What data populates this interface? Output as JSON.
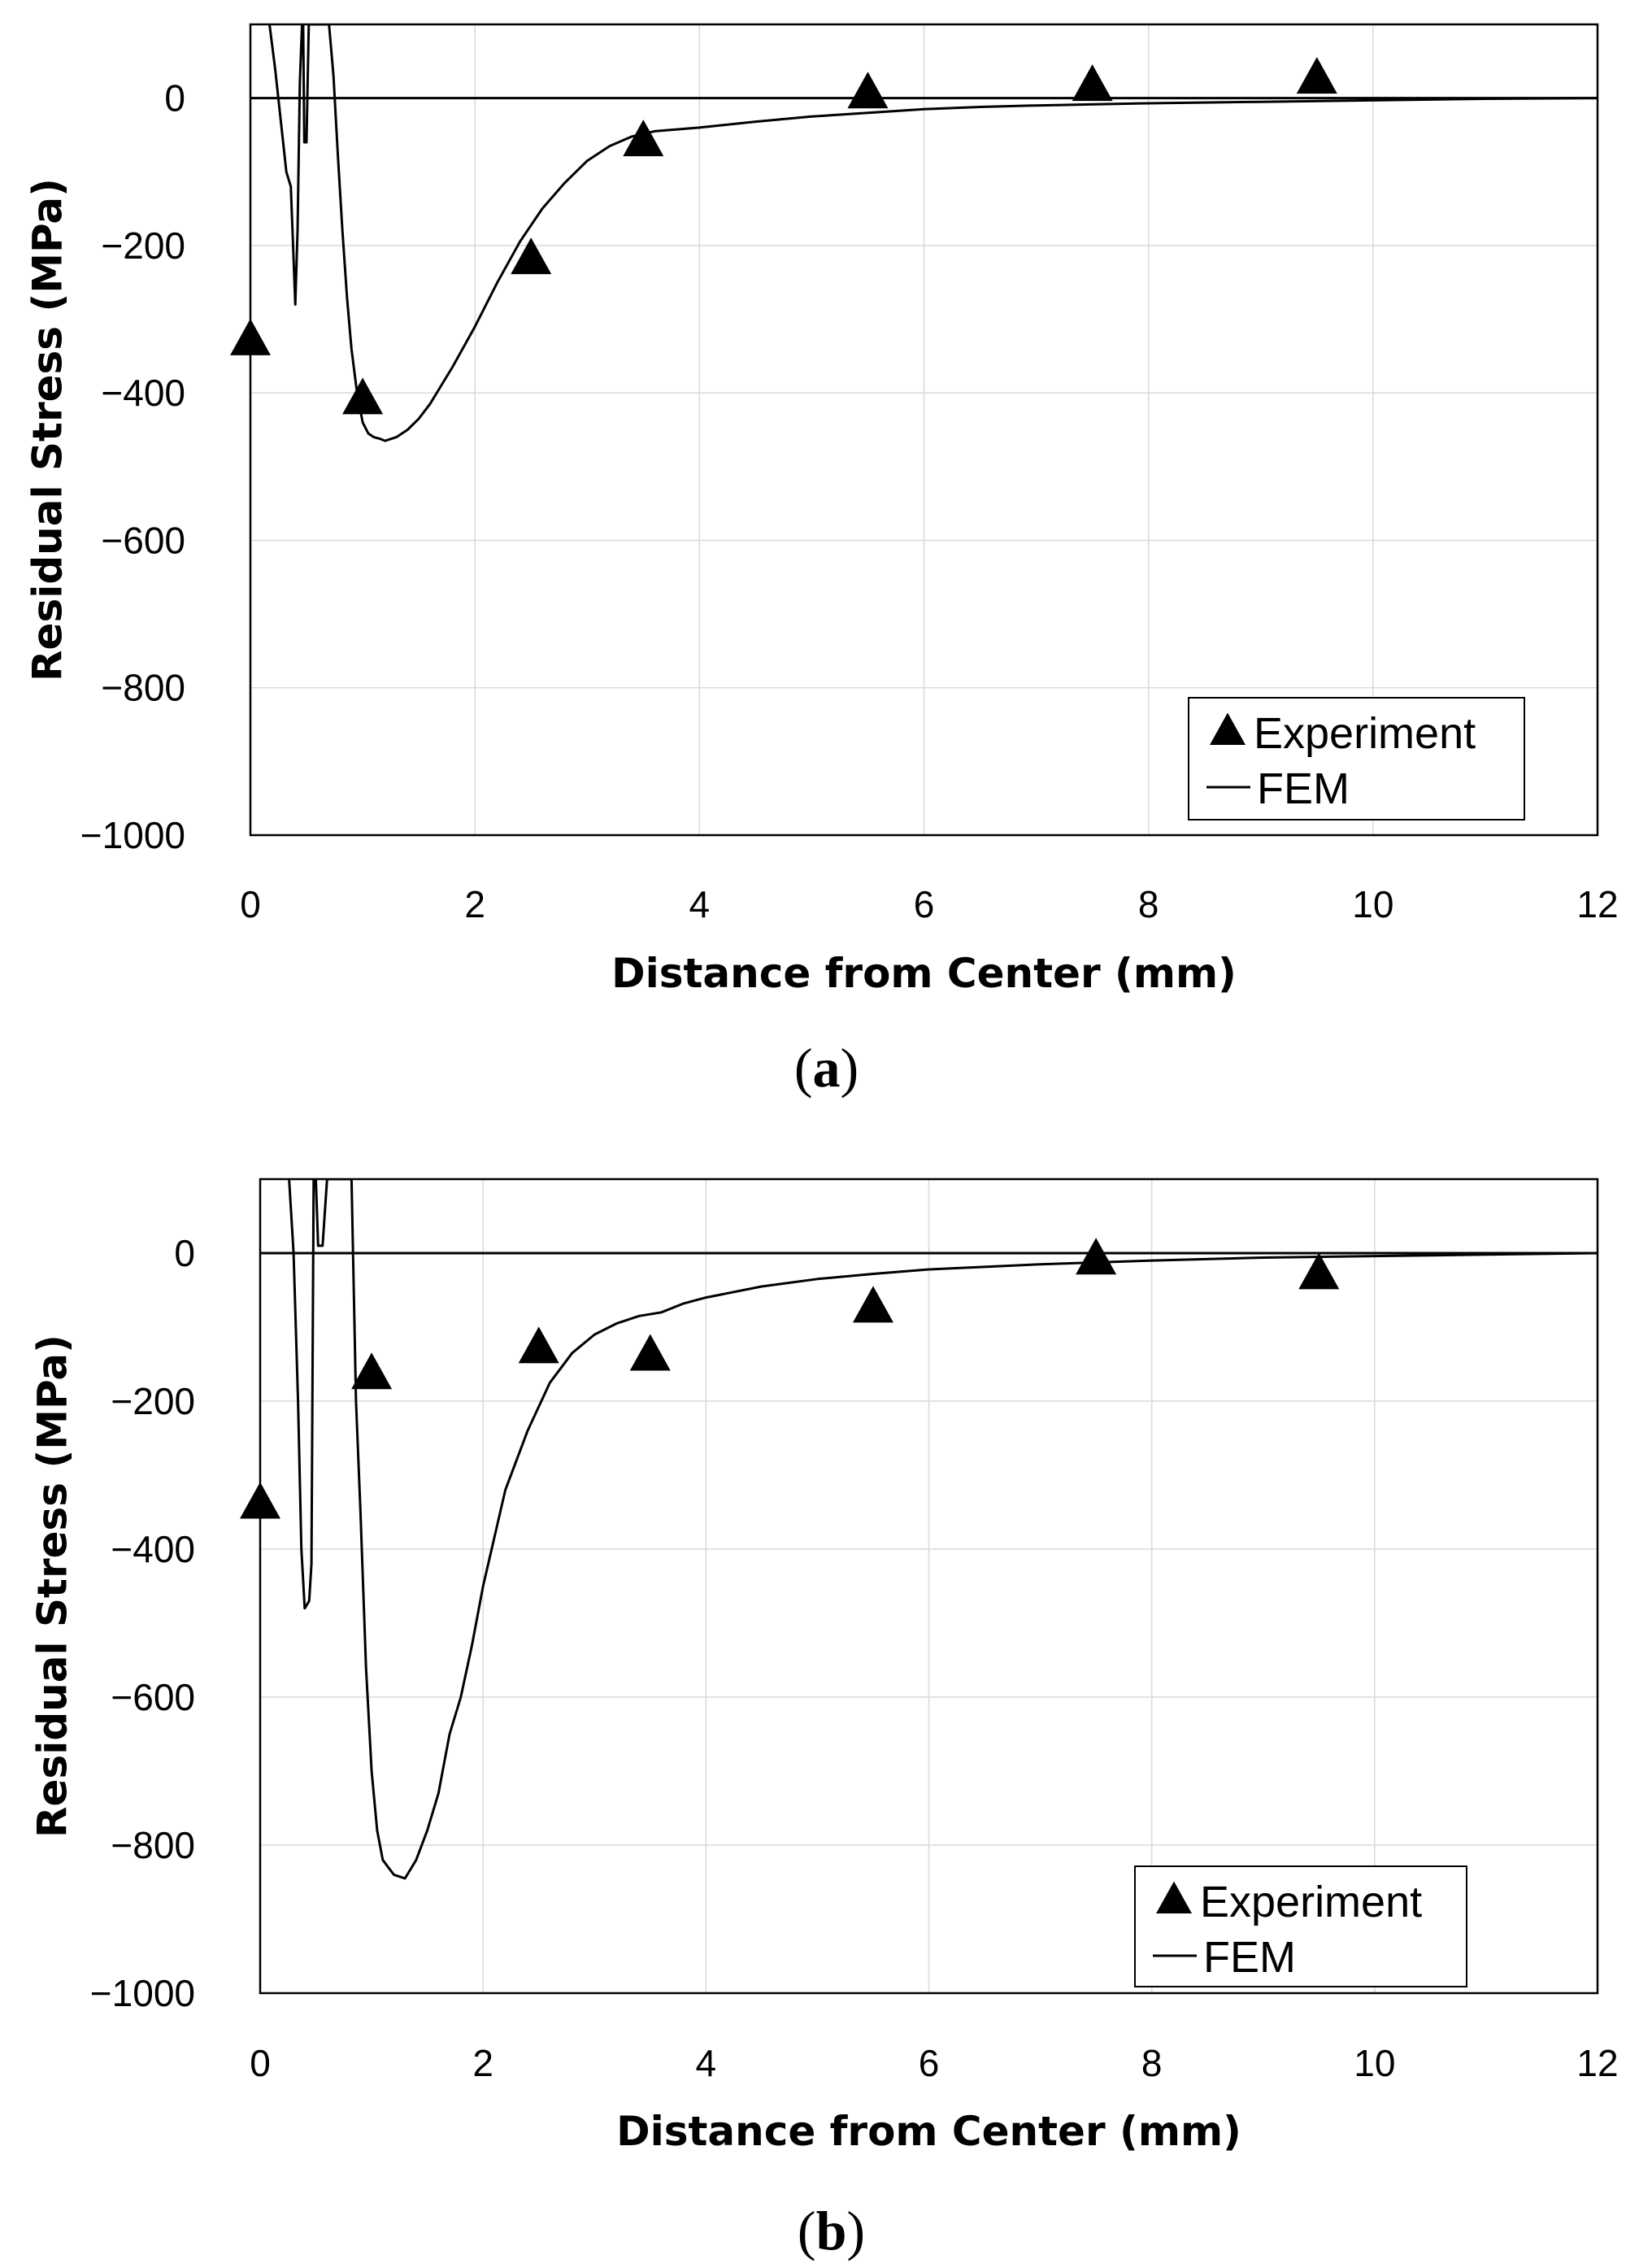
{
  "chart_data": [
    {
      "type": "scatter+line",
      "panel_label": "a",
      "xlabel": "Distance from Center (mm)",
      "ylabel": "Residual Stress (MPa)",
      "xlim": [
        0,
        12
      ],
      "ylim": [
        -1000,
        100
      ],
      "x_ticks": [
        "0",
        "2",
        "4",
        "6",
        "8",
        "10",
        "12"
      ],
      "y_ticks": [
        "0",
        "−200",
        "−400",
        "−600",
        "−800",
        "−1000"
      ],
      "grid": true,
      "legend_position": "bottom-right",
      "series": [
        {
          "name": "Experiment",
          "marker": "triangle",
          "x": [
            0.0,
            1.0,
            2.5,
            3.5,
            5.5,
            7.5,
            9.5
          ],
          "y": [
            -330,
            -410,
            -220,
            -60,
            5,
            15,
            25
          ]
        },
        {
          "name": "FEM",
          "marker": "line",
          "x": [
            0.17,
            0.22,
            0.27,
            0.32,
            0.36,
            0.38,
            0.4,
            0.42,
            0.44,
            0.46,
            0.47,
            0.48,
            0.5,
            0.52,
            0.54,
            0.56,
            0.58,
            0.62,
            0.66,
            0.7,
            0.74,
            0.78,
            0.82,
            0.86,
            0.9,
            0.95,
            1.0,
            1.05,
            1.1,
            1.15,
            1.2,
            1.3,
            1.4,
            1.5,
            1.6,
            1.7,
            1.8,
            2.0,
            2.2,
            2.4,
            2.6,
            2.8,
            3.0,
            3.2,
            3.4,
            3.6,
            4.0,
            4.5,
            5.0,
            5.5,
            6.0,
            6.5,
            7.0,
            8.0,
            9.0,
            10.0,
            11.0,
            12.0
          ],
          "y": [
            100,
            40,
            -30,
            -100,
            -120,
            -200,
            -280,
            -180,
            20,
            100,
            100,
            -60,
            -60,
            100,
            100,
            100,
            100,
            100,
            100,
            100,
            30,
            -80,
            -180,
            -270,
            -340,
            -400,
            -440,
            -455,
            -460,
            -462,
            -465,
            -460,
            -450,
            -435,
            -415,
            -390,
            -365,
            -310,
            -250,
            -195,
            -150,
            -115,
            -85,
            -65,
            -52,
            -45,
            -40,
            -32,
            -25,
            -20,
            -15,
            -12,
            -10,
            -7,
            -5,
            -3,
            -1,
            0
          ]
        }
      ]
    },
    {
      "type": "scatter+line",
      "panel_label": "b",
      "xlabel": "Distance from Center (mm)",
      "ylabel": "Residual Stress (MPa)",
      "xlim": [
        0,
        12
      ],
      "ylim": [
        -1000,
        100
      ],
      "x_ticks": [
        "0",
        "2",
        "4",
        "6",
        "8",
        "10",
        "12"
      ],
      "y_ticks": [
        "0",
        "−200",
        "−400",
        "−600",
        "−800",
        "−1000"
      ],
      "grid": true,
      "legend_position": "bottom-right",
      "series": [
        {
          "name": "Experiment",
          "marker": "triangle",
          "x": [
            0.0,
            1.0,
            2.5,
            3.5,
            5.5,
            7.5,
            9.5
          ],
          "y": [
            -340,
            -165,
            -130,
            -140,
            -75,
            -10,
            -30
          ]
        },
        {
          "name": "FEM",
          "marker": "line",
          "x": [
            0.26,
            0.3,
            0.34,
            0.37,
            0.4,
            0.44,
            0.46,
            0.48,
            0.5,
            0.52,
            0.56,
            0.6,
            0.64,
            0.7,
            0.76,
            0.82,
            0.86,
            0.9,
            0.95,
            1.0,
            1.05,
            1.1,
            1.15,
            1.2,
            1.3,
            1.4,
            1.5,
            1.6,
            1.7,
            1.8,
            1.9,
            2.0,
            2.2,
            2.4,
            2.6,
            2.8,
            3.0,
            3.2,
            3.4,
            3.6,
            3.8,
            4.0,
            4.5,
            5.0,
            5.5,
            6.0,
            7.0,
            8.0,
            9.0,
            10.0,
            11.0,
            12.0
          ],
          "y": [
            100,
            0,
            -200,
            -400,
            -480,
            -470,
            -420,
            100,
            100,
            10,
            10,
            100,
            100,
            100,
            100,
            100,
            -200,
            -350,
            -560,
            -700,
            -780,
            -820,
            -830,
            -840,
            -845,
            -820,
            -780,
            -730,
            -650,
            -600,
            -530,
            -450,
            -320,
            -240,
            -175,
            -135,
            -110,
            -95,
            -85,
            -80,
            -68,
            -60,
            -45,
            -35,
            -28,
            -22,
            -15,
            -10,
            -6,
            -4,
            -2,
            0
          ]
        }
      ]
    }
  ]
}
